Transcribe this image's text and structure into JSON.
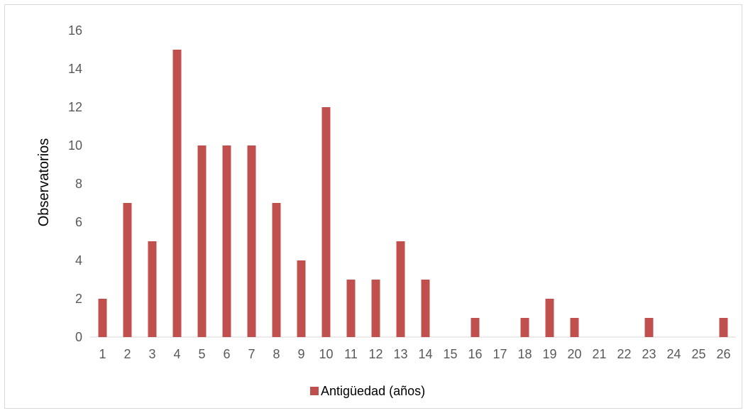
{
  "chart_data": {
    "type": "bar",
    "categories": [
      "1",
      "2",
      "3",
      "4",
      "5",
      "6",
      "7",
      "8",
      "9",
      "10",
      "11",
      "12",
      "13",
      "14",
      "15",
      "16",
      "17",
      "18",
      "19",
      "20",
      "21",
      "22",
      "23",
      "24",
      "25",
      "26"
    ],
    "series": [
      {
        "name": "Antigüedad (años)",
        "color": "#c0504d",
        "values": [
          2,
          7,
          5,
          15,
          10,
          10,
          10,
          7,
          4,
          12,
          3,
          3,
          5,
          3,
          0,
          1,
          0,
          1,
          2,
          1,
          0,
          0,
          1,
          0,
          0,
          1
        ]
      }
    ],
    "ylabel": "Observatorios",
    "xlabel": "",
    "ylim": [
      0,
      16
    ],
    "yticks": [
      0,
      2,
      4,
      6,
      8,
      10,
      12,
      14,
      16
    ],
    "grid": false,
    "legend": "bottom"
  }
}
